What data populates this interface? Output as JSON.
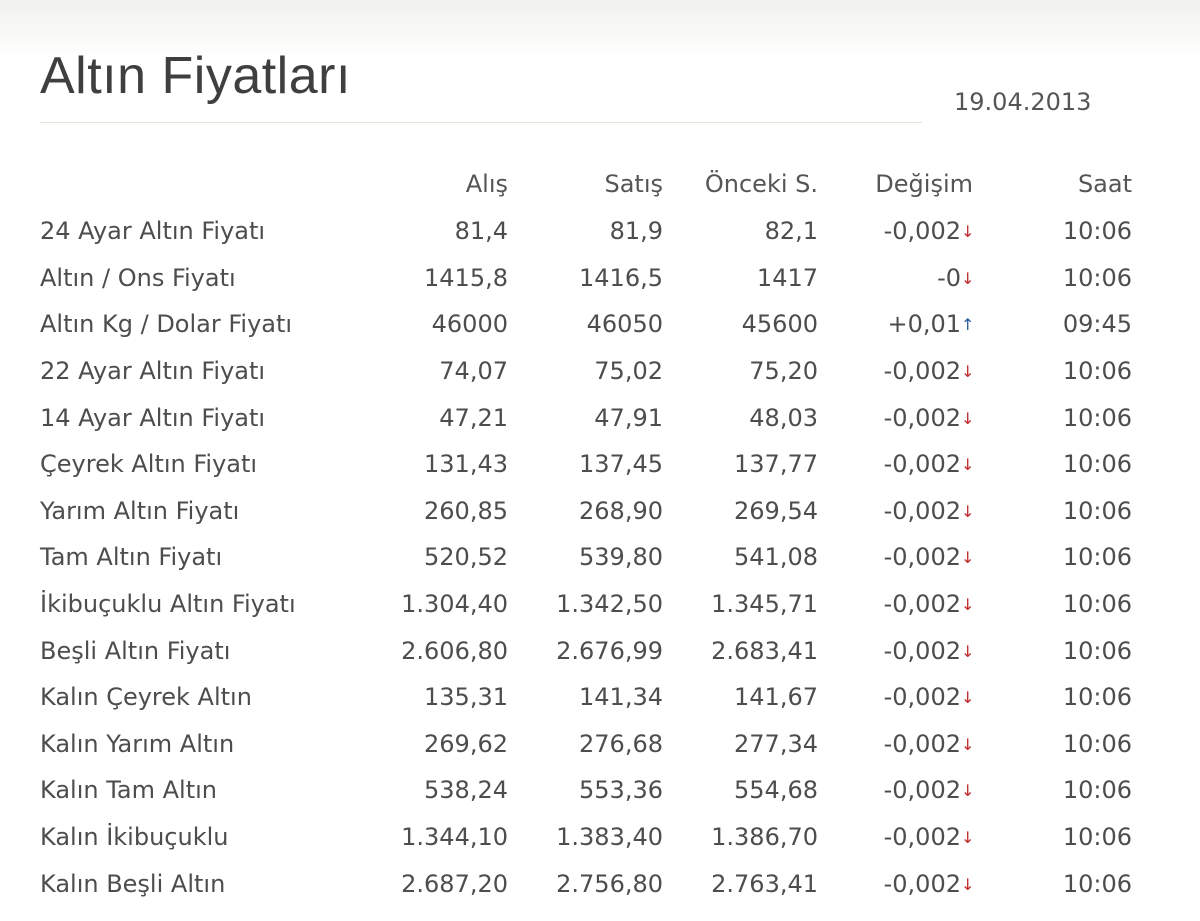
{
  "page": {
    "title": "Altın Fiyatları",
    "date": "19.04.2013"
  },
  "table": {
    "headers": [
      "Alış",
      "Satış",
      "Önceki S.",
      "Değişim",
      "Saat"
    ],
    "rows": [
      {
        "name": "24 Ayar Altın Fiyatı",
        "buy": "81,4",
        "sell": "81,9",
        "prev": "82,1",
        "change": "-0,002",
        "dir": "down",
        "time": "10:06"
      },
      {
        "name": "Altın / Ons Fiyatı",
        "buy": "1415,8",
        "sell": "1416,5",
        "prev": "1417",
        "change": "-0",
        "dir": "down",
        "time": "10:06"
      },
      {
        "name": "Altın Kg / Dolar Fiyatı",
        "buy": "46000",
        "sell": "46050",
        "prev": "45600",
        "change": "+0,01",
        "dir": "up",
        "time": "09:45"
      },
      {
        "name": "22 Ayar Altın Fiyatı",
        "buy": "74,07",
        "sell": "75,02",
        "prev": "75,20",
        "change": "-0,002",
        "dir": "down",
        "time": "10:06"
      },
      {
        "name": "14 Ayar Altın Fiyatı",
        "buy": "47,21",
        "sell": "47,91",
        "prev": "48,03",
        "change": "-0,002",
        "dir": "down",
        "time": "10:06"
      },
      {
        "name": "Çeyrek Altın Fiyatı",
        "buy": "131,43",
        "sell": "137,45",
        "prev": "137,77",
        "change": "-0,002",
        "dir": "down",
        "time": "10:06"
      },
      {
        "name": "Yarım Altın Fiyatı",
        "buy": "260,85",
        "sell": "268,90",
        "prev": "269,54",
        "change": "-0,002",
        "dir": "down",
        "time": "10:06"
      },
      {
        "name": "Tam Altın Fiyatı",
        "buy": "520,52",
        "sell": "539,80",
        "prev": "541,08",
        "change": "-0,002",
        "dir": "down",
        "time": "10:06"
      },
      {
        "name": "İkibuçuklu Altın Fiyatı",
        "buy": "1.304,40",
        "sell": "1.342,50",
        "prev": "1.345,71",
        "change": "-0,002",
        "dir": "down",
        "time": "10:06"
      },
      {
        "name": "Beşli Altın Fiyatı",
        "buy": "2.606,80",
        "sell": "2.676,99",
        "prev": "2.683,41",
        "change": "-0,002",
        "dir": "down",
        "time": "10:06"
      },
      {
        "name": "Kalın Çeyrek Altın",
        "buy": "135,31",
        "sell": "141,34",
        "prev": "141,67",
        "change": "-0,002",
        "dir": "down",
        "time": "10:06"
      },
      {
        "name": "Kalın Yarım Altın",
        "buy": "269,62",
        "sell": "276,68",
        "prev": "277,34",
        "change": "-0,002",
        "dir": "down",
        "time": "10:06"
      },
      {
        "name": "Kalın Tam Altın",
        "buy": "538,24",
        "sell": "553,36",
        "prev": "554,68",
        "change": "-0,002",
        "dir": "down",
        "time": "10:06"
      },
      {
        "name": "Kalın İkibuçuklu",
        "buy": "1.344,10",
        "sell": "1.383,40",
        "prev": "1.386,70",
        "change": "-0,002",
        "dir": "down",
        "time": "10:06"
      },
      {
        "name": "Kalın Beşli Altın",
        "buy": "2.687,20",
        "sell": "2.756,80",
        "prev": "2.763,41",
        "change": "-0,002",
        "dir": "down",
        "time": "10:06"
      }
    ]
  },
  "icons": {
    "down": "arrow-down-icon",
    "up": "arrow-up-icon"
  },
  "colors": {
    "down": "#c0282d",
    "up": "#2a5b9e"
  }
}
